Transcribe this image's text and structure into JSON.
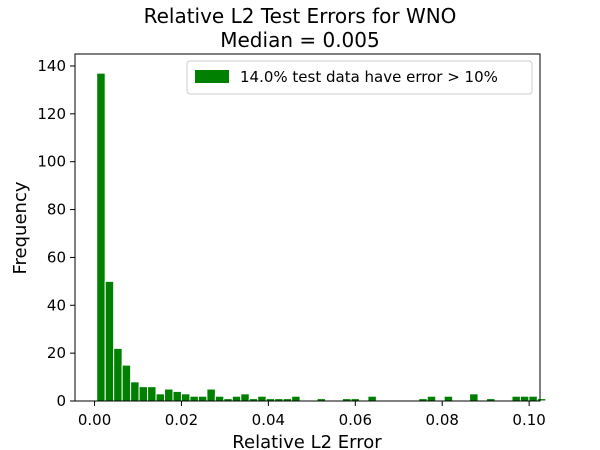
{
  "chart_data": {
    "type": "bar",
    "title": "Relative L2 Test Errors for WNO",
    "subtitle": "Median = 0.005",
    "xlabel": "Relative L2 Error",
    "ylabel": "Frequency",
    "xlim": [
      -0.0045,
      0.1025
    ],
    "ylim": [
      0,
      145
    ],
    "xticks": [
      0.0,
      0.02,
      0.04,
      0.06,
      0.08,
      0.1
    ],
    "xtick_labels": [
      "0.00",
      "0.02",
      "0.04",
      "0.06",
      "0.08",
      "0.10"
    ],
    "yticks": [
      0,
      20,
      40,
      60,
      80,
      100,
      120,
      140
    ],
    "ytick_labels": [
      "0",
      "20",
      "40",
      "60",
      "80",
      "100",
      "120",
      "140"
    ],
    "grid": false,
    "legend_position": "top-right",
    "bin_start": 0.0005,
    "bin_width": 0.00195,
    "series": [
      {
        "name": "14.0% test data have error > 10%",
        "color": "#008000",
        "edgecolor": "#ffffff",
        "values": [
          137,
          50,
          22,
          15,
          8,
          6,
          6,
          3,
          5,
          4,
          3,
          2,
          2,
          5,
          2,
          1,
          2,
          3,
          1,
          2,
          1,
          1,
          1,
          2,
          0,
          0,
          1,
          0,
          0,
          1,
          1,
          0,
          2,
          0,
          0,
          0,
          0,
          0,
          1,
          2,
          0,
          2,
          0,
          0,
          3,
          0,
          1,
          0,
          0,
          2,
          2,
          2,
          1,
          0,
          0,
          0,
          0,
          0
        ]
      }
    ]
  }
}
